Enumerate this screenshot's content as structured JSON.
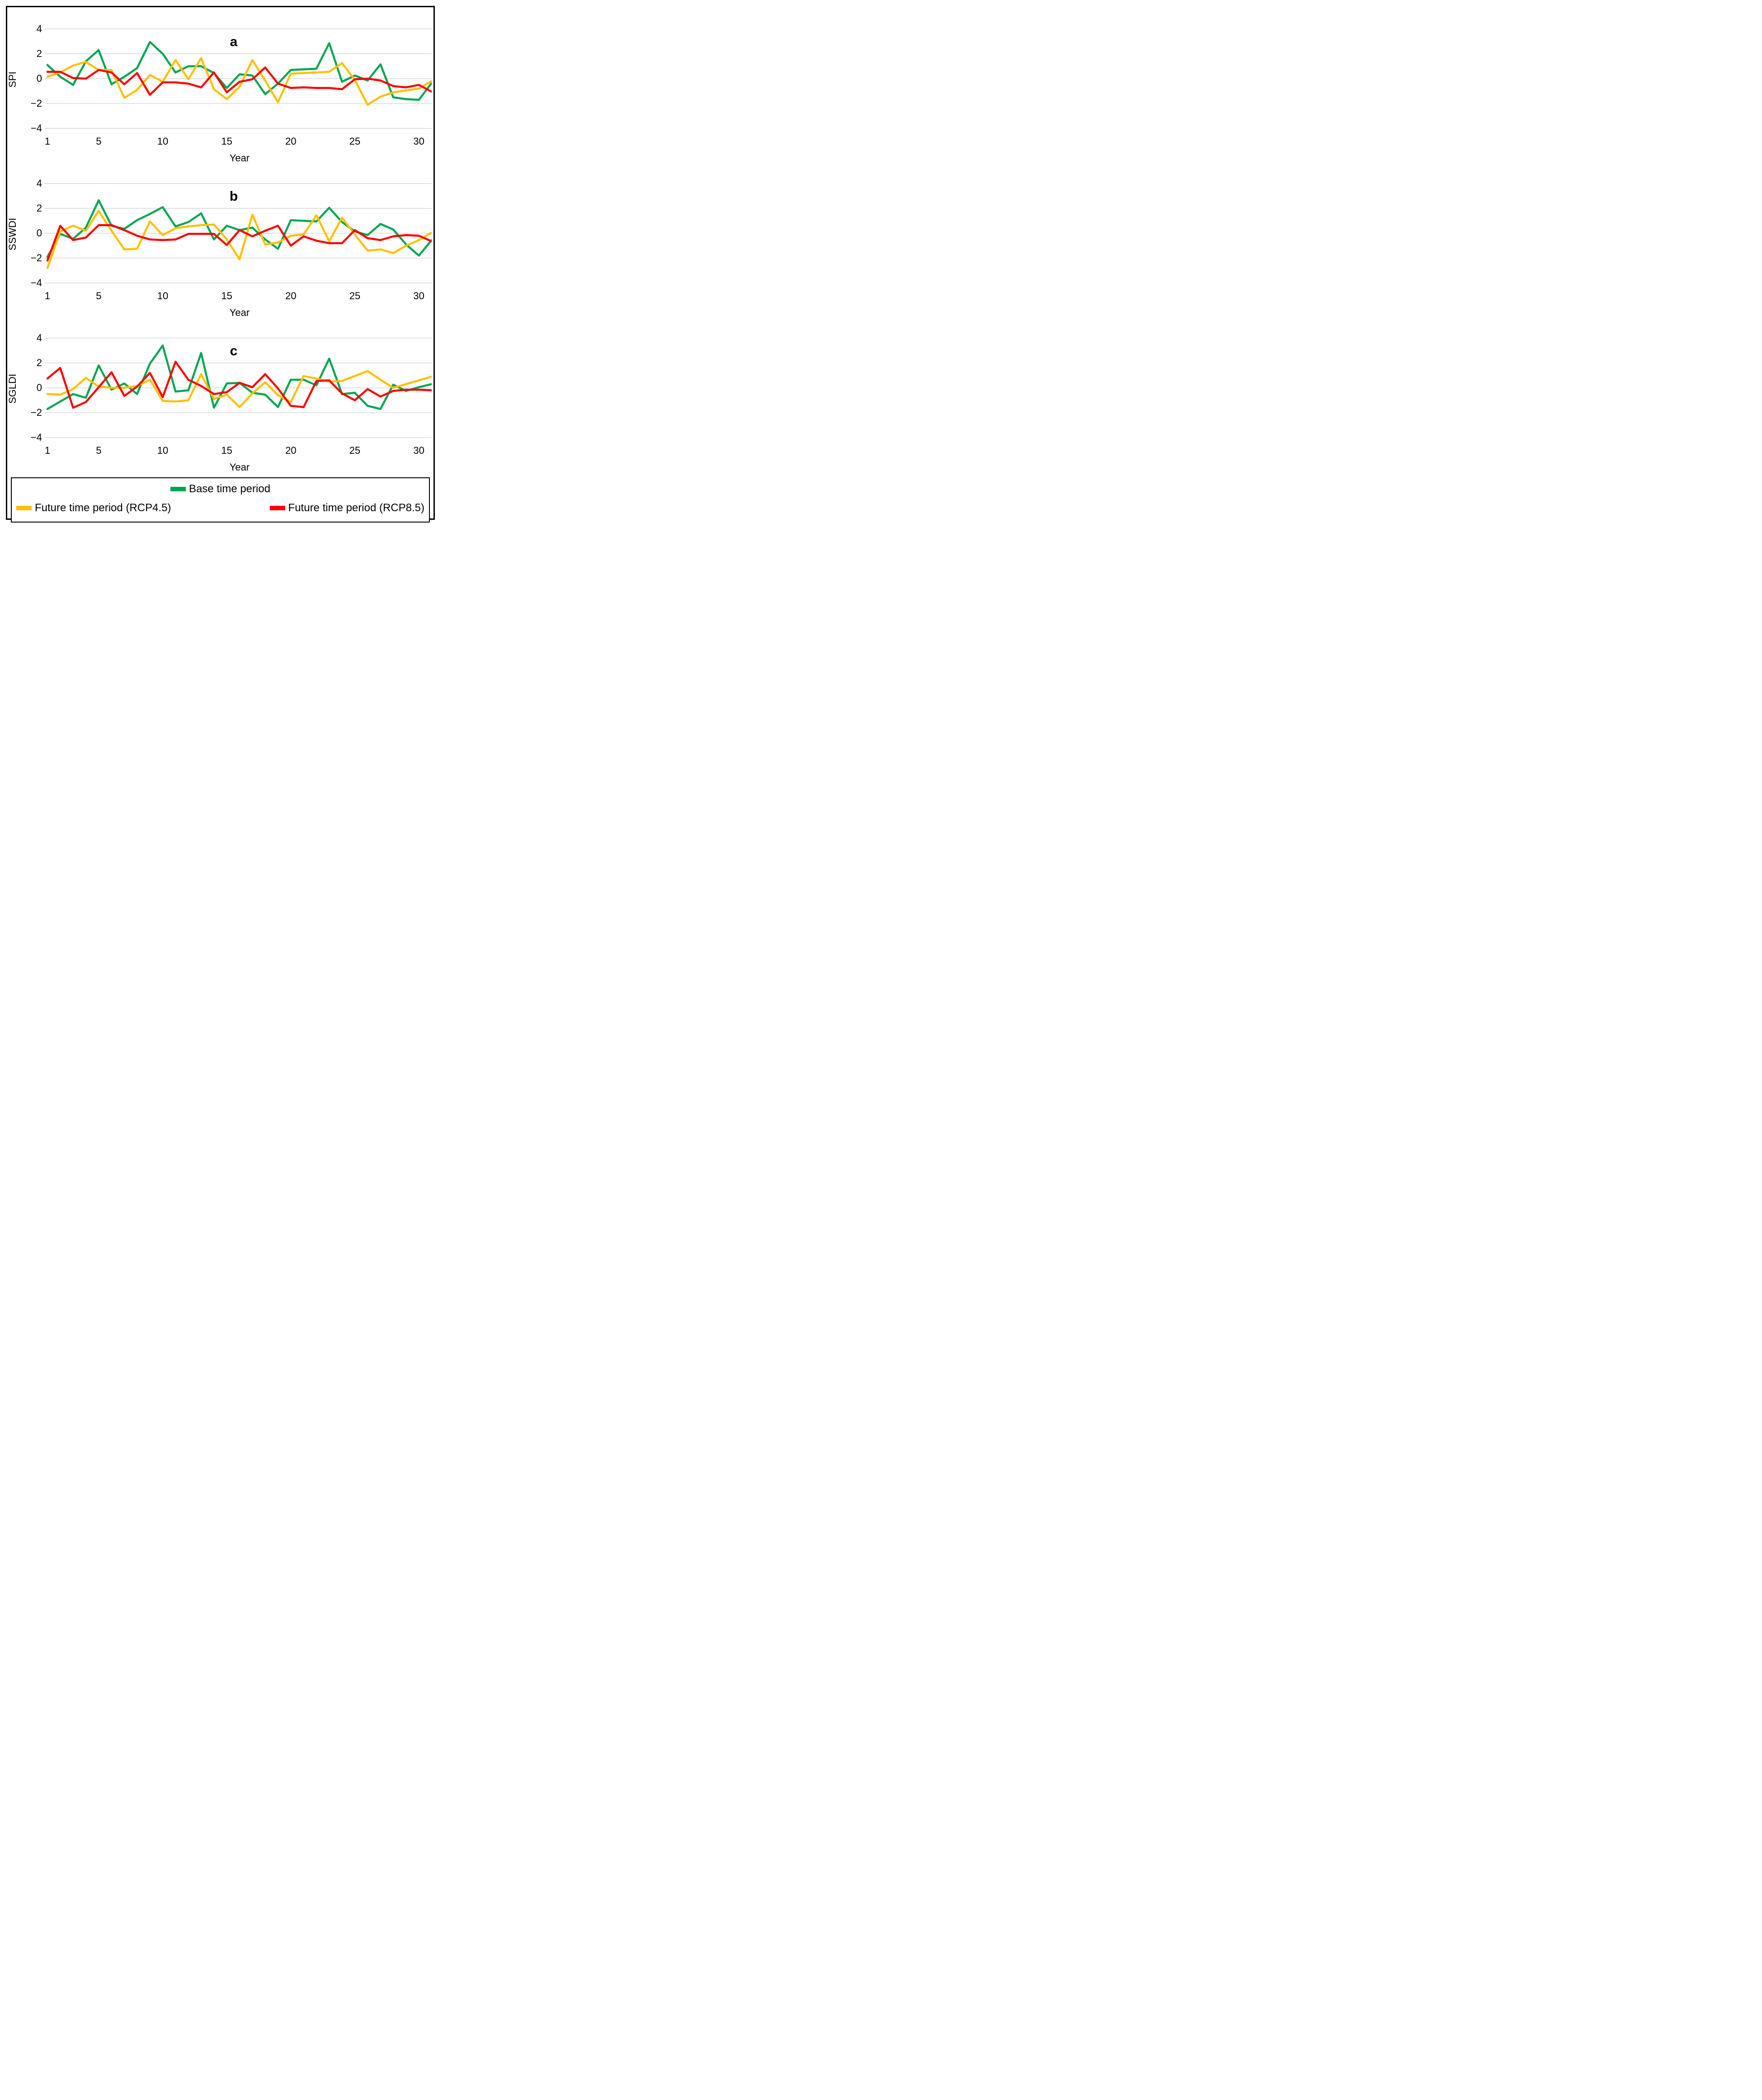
{
  "figure": {
    "background": "#FFFFFF",
    "border_color": "#000000",
    "grid_color": "#D9D9D9",
    "text_color": "#000000"
  },
  "legend": {
    "items": [
      {
        "key": "base",
        "label": "Base time period",
        "color": "#00A651"
      },
      {
        "key": "rcp45",
        "label": "Future time period (RCP4.5)",
        "color": "#FFC000"
      },
      {
        "key": "rcp85",
        "label": "Future time period (RCP8.5)",
        "color": "#FF0000"
      }
    ]
  },
  "chart_data": [
    {
      "type": "line",
      "panel_label": "a",
      "title": "a",
      "xlabel": "Year",
      "ylabel": "SPI",
      "xlim": [
        1,
        31
      ],
      "ylim": [
        -4,
        4
      ],
      "grid": true,
      "xticks": [
        1,
        5,
        10,
        15,
        20,
        25,
        30
      ],
      "yticks": [
        4,
        2,
        0,
        -2,
        -4
      ],
      "x": [
        1,
        2,
        3,
        4,
        5,
        6,
        7,
        8,
        9,
        10,
        11,
        12,
        13,
        14,
        15,
        16,
        17,
        18,
        19,
        20,
        21,
        22,
        23,
        24,
        25,
        26,
        27,
        28,
        29,
        30,
        31
      ],
      "series": [
        {
          "name": "Base time period",
          "color": "#00A651",
          "values": [
            1.1,
            0.15,
            -0.5,
            1.4,
            2.3,
            -0.45,
            0.15,
            0.85,
            2.95,
            2.0,
            0.5,
            1.0,
            1.0,
            0.45,
            -0.75,
            0.35,
            0.25,
            -1.25,
            -0.4,
            0.7,
            0.75,
            0.8,
            2.85,
            -0.25,
            0.25,
            -0.15,
            1.15,
            -1.5,
            -1.65,
            -1.7,
            -0.35
          ]
        },
        {
          "name": "Future time period (RCP4.5)",
          "color": "#FFC000",
          "values": [
            0.15,
            0.5,
            1.05,
            1.35,
            0.7,
            0.7,
            -1.55,
            -0.9,
            0.3,
            -0.25,
            1.5,
            -0.05,
            1.65,
            -0.85,
            -1.65,
            -0.65,
            1.5,
            -0.15,
            -1.9,
            0.4,
            0.45,
            0.5,
            0.55,
            1.25,
            -0.1,
            -2.1,
            -1.45,
            -1.1,
            -0.95,
            -0.8,
            -0.2
          ]
        },
        {
          "name": "Future time period (RCP8.5)",
          "color": "#FF0000",
          "values": [
            0.55,
            0.55,
            0.05,
            0.0,
            0.7,
            0.5,
            -0.45,
            0.45,
            -1.3,
            -0.3,
            -0.3,
            -0.4,
            -0.7,
            0.5,
            -1.1,
            -0.25,
            -0.05,
            0.9,
            -0.4,
            -0.75,
            -0.7,
            -0.75,
            -0.75,
            -0.85,
            -0.05,
            0.0,
            -0.15,
            -0.6,
            -0.7,
            -0.5,
            -1.05
          ]
        }
      ]
    },
    {
      "type": "line",
      "panel_label": "b",
      "title": "b",
      "xlabel": "Year",
      "ylabel": "SSWDI",
      "xlim": [
        1,
        31
      ],
      "ylim": [
        -4,
        4
      ],
      "grid": true,
      "xticks": [
        1,
        5,
        10,
        15,
        20,
        25,
        30
      ],
      "yticks": [
        4,
        2,
        0,
        -2,
        -4
      ],
      "x": [
        1,
        2,
        3,
        4,
        5,
        6,
        7,
        8,
        9,
        10,
        11,
        12,
        13,
        14,
        15,
        16,
        17,
        18,
        19,
        20,
        21,
        22,
        23,
        24,
        25,
        26,
        27,
        28,
        29,
        30,
        31
      ],
      "series": [
        {
          "name": "Base time period",
          "color": "#00A651",
          "values": [
            -1.9,
            -0.05,
            -0.45,
            0.45,
            2.65,
            0.6,
            0.35,
            1.05,
            1.55,
            2.1,
            0.55,
            0.9,
            1.6,
            -0.5,
            0.6,
            0.25,
            0.45,
            -0.5,
            -1.25,
            1.05,
            1.0,
            0.95,
            2.05,
            0.9,
            0.15,
            -0.15,
            0.75,
            0.3,
            -0.9,
            -1.8,
            -0.55
          ]
        },
        {
          "name": "Future time period (RCP4.5)",
          "color": "#FFC000",
          "values": [
            -2.8,
            0.15,
            0.6,
            0.2,
            1.8,
            0.2,
            -1.3,
            -1.25,
            0.95,
            -0.15,
            0.4,
            0.55,
            0.65,
            0.7,
            -0.5,
            -2.1,
            1.5,
            -0.9,
            -0.75,
            -0.2,
            -0.1,
            1.45,
            -0.65,
            1.25,
            -0.1,
            -1.4,
            -1.3,
            -1.6,
            -1.0,
            -0.55,
            0.05
          ]
        },
        {
          "name": "Future time period (RCP8.5)",
          "color": "#FF0000",
          "values": [
            -2.2,
            0.6,
            -0.55,
            -0.35,
            0.65,
            0.65,
            0.25,
            -0.2,
            -0.5,
            -0.55,
            -0.5,
            -0.05,
            -0.05,
            -0.05,
            -0.95,
            0.25,
            -0.25,
            0.2,
            0.6,
            -1.0,
            -0.25,
            -0.6,
            -0.8,
            -0.8,
            0.25,
            -0.4,
            -0.55,
            -0.25,
            -0.15,
            -0.2,
            -0.65
          ]
        }
      ]
    },
    {
      "type": "line",
      "panel_label": "c",
      "title": "c",
      "xlabel": "Year",
      "ylabel": "SGLDI",
      "xlim": [
        1,
        31
      ],
      "ylim": [
        -4,
        4
      ],
      "grid": true,
      "xticks": [
        1,
        5,
        10,
        15,
        20,
        25,
        30
      ],
      "yticks": [
        4,
        2,
        0,
        -2,
        -4
      ],
      "x": [
        1,
        2,
        3,
        4,
        5,
        6,
        7,
        8,
        9,
        10,
        11,
        12,
        13,
        14,
        15,
        16,
        17,
        18,
        19,
        20,
        21,
        22,
        23,
        24,
        25,
        26,
        27,
        28,
        29,
        30,
        31
      ],
      "series": [
        {
          "name": "Base time period",
          "color": "#00A651",
          "values": [
            -1.7,
            -1.1,
            -0.5,
            -0.8,
            1.8,
            -0.15,
            0.35,
            -0.5,
            1.95,
            3.4,
            -0.3,
            -0.2,
            2.8,
            -1.6,
            0.35,
            0.4,
            -0.4,
            -0.55,
            -1.55,
            0.65,
            0.65,
            0.2,
            2.35,
            -0.5,
            -0.4,
            -1.45,
            -1.7,
            0.25,
            -0.25,
            0.05,
            0.3
          ]
        },
        {
          "name": "Future time period (RCP4.5)",
          "color": "#FFC000",
          "values": [
            -0.5,
            -0.55,
            -0.1,
            0.8,
            0.1,
            0.0,
            0.0,
            0.15,
            0.65,
            -1.05,
            -1.1,
            -1.0,
            1.1,
            -0.9,
            -0.55,
            -1.55,
            -0.45,
            0.45,
            -0.6,
            -1.15,
            0.95,
            0.75,
            0.5,
            0.55,
            0.95,
            1.35,
            0.65,
            0.0,
            0.3,
            0.6,
            0.9
          ]
        },
        {
          "name": "Future time period (RCP8.5)",
          "color": "#FF0000",
          "values": [
            0.75,
            1.6,
            -1.6,
            -1.15,
            0.05,
            1.25,
            -0.65,
            0.1,
            1.2,
            -0.75,
            2.1,
            0.65,
            0.15,
            -0.5,
            -0.35,
            0.4,
            0.05,
            1.1,
            -0.05,
            -1.45,
            -1.55,
            0.55,
            0.6,
            -0.45,
            -1.0,
            -0.1,
            -0.7,
            -0.25,
            -0.15,
            -0.15,
            -0.2
          ]
        }
      ]
    }
  ]
}
